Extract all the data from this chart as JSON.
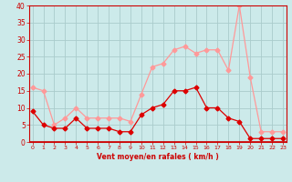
{
  "xlabel": "Vent moyen/en rafales ( km/h )",
  "background_color": "#cceaea",
  "grid_color": "#aacccc",
  "line_mean_color": "#dd0000",
  "line_gust_color": "#ff9999",
  "x": [
    0,
    1,
    2,
    3,
    4,
    5,
    6,
    7,
    8,
    9,
    10,
    11,
    12,
    13,
    14,
    15,
    16,
    17,
    18,
    19,
    20,
    21,
    22,
    23
  ],
  "y_mean": [
    9,
    5,
    4,
    4,
    7,
    4,
    4,
    4,
    3,
    3,
    8,
    10,
    11,
    15,
    15,
    16,
    10,
    10,
    7,
    6,
    1,
    1,
    1,
    1
  ],
  "y_gust": [
    16,
    15,
    5,
    7,
    10,
    7,
    7,
    7,
    7,
    6,
    14,
    22,
    23,
    27,
    28,
    26,
    27,
    27,
    21,
    40,
    19,
    3,
    3,
    3
  ],
  "ylim": [
    0,
    40
  ],
  "yticks": [
    0,
    5,
    10,
    15,
    20,
    25,
    30,
    35,
    40
  ],
  "markersize": 2.5,
  "linewidth": 0.9
}
